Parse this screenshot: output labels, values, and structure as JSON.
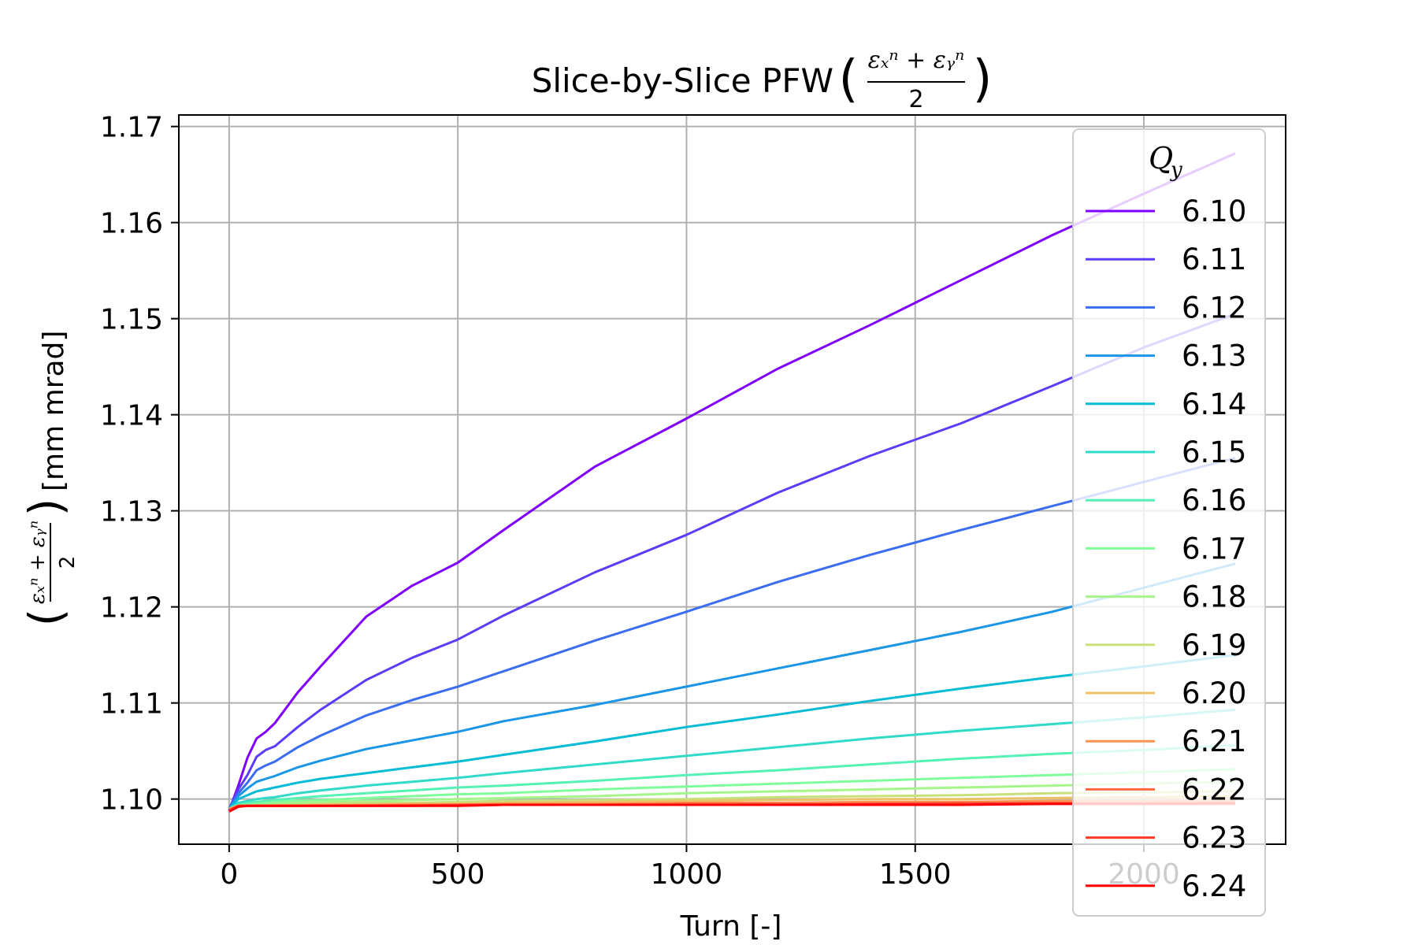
{
  "chart_data": {
    "type": "line",
    "title": "Slice-by-Slice PFW",
    "title_math": {
      "lparen": "(",
      "numerator": "εₓⁿ + εᵧⁿ",
      "denominator": "2",
      "rparen": ")"
    },
    "xlabel": "Turn [-]",
    "ylabel_math": {
      "lparen": "(",
      "numerator": "εₓⁿ + εᵧⁿ",
      "denominator": "2",
      "rparen": ")"
    },
    "ylabel": "[mm mrad]",
    "xlim": [
      -110,
      2310
    ],
    "ylim": [
      1.0953,
      1.1712
    ],
    "xticks": [
      0,
      500,
      1000,
      1500,
      2000
    ],
    "xtick_labels": [
      "0",
      "500",
      "1000",
      "1500",
      "2000"
    ],
    "yticks": [
      1.1,
      1.11,
      1.12,
      1.13,
      1.14,
      1.15,
      1.16,
      1.17
    ],
    "ytick_labels": [
      "1.10",
      "1.11",
      "1.12",
      "1.13",
      "1.14",
      "1.15",
      "1.16",
      "1.17"
    ],
    "grid": true,
    "legend": {
      "title": "Q",
      "title_sub": "y",
      "placement": "right"
    },
    "x": [
      0,
      20,
      40,
      60,
      80,
      100,
      150,
      200,
      300,
      400,
      500,
      600,
      800,
      1000,
      1200,
      1400,
      1600,
      1800,
      2000,
      2200
    ],
    "series": [
      {
        "name": "6.10",
        "color": "#8000ff",
        "values": [
          1.0988,
          1.1014,
          1.1043,
          1.1063,
          1.107,
          1.1079,
          1.1111,
          1.1138,
          1.119,
          1.1222,
          1.1246,
          1.128,
          1.1346,
          1.1396,
          1.1448,
          1.1493,
          1.154,
          1.1587,
          1.163,
          1.1672
        ]
      },
      {
        "name": "6.11",
        "color": "#5c3cfb",
        "values": [
          1.099,
          1.101,
          1.1025,
          1.1044,
          1.1051,
          1.1055,
          1.1075,
          1.1093,
          1.1124,
          1.1147,
          1.1166,
          1.1191,
          1.1236,
          1.1275,
          1.1319,
          1.1357,
          1.1391,
          1.143,
          1.147,
          1.1505
        ]
      },
      {
        "name": "6.12",
        "color": "#3a6cf4",
        "values": [
          1.099,
          1.1006,
          1.1017,
          1.103,
          1.1035,
          1.1039,
          1.1054,
          1.1066,
          1.1087,
          1.1103,
          1.1117,
          1.1133,
          1.1165,
          1.1195,
          1.1226,
          1.1254,
          1.128,
          1.1305,
          1.133,
          1.1355
        ]
      },
      {
        "name": "6.13",
        "color": "#1996e8",
        "values": [
          1.099,
          1.1003,
          1.1011,
          1.1018,
          1.1021,
          1.1024,
          1.1033,
          1.104,
          1.1052,
          1.1061,
          1.107,
          1.1081,
          1.1098,
          1.1117,
          1.1136,
          1.1155,
          1.1174,
          1.1195,
          1.122,
          1.1245
        ]
      },
      {
        "name": "6.14",
        "color": "#06bbd6",
        "values": [
          1.099,
          1.1,
          1.1004,
          1.1008,
          1.101,
          1.1012,
          1.1017,
          1.1021,
          1.1027,
          1.1033,
          1.1039,
          1.1046,
          1.106,
          1.1075,
          1.1088,
          1.1102,
          1.1115,
          1.1127,
          1.1138,
          1.115
        ]
      },
      {
        "name": "6.15",
        "color": "#31d9c8",
        "values": [
          1.099,
          1.0996,
          1.0998,
          1.1,
          1.1001,
          1.1002,
          1.1006,
          1.1009,
          1.1014,
          1.1018,
          1.1022,
          1.1027,
          1.1036,
          1.1045,
          1.1054,
          1.1063,
          1.1071,
          1.1078,
          1.1085,
          1.1093
        ]
      },
      {
        "name": "6.16",
        "color": "#56f1b4",
        "values": [
          1.099,
          1.0994,
          1.0996,
          1.0997,
          1.0998,
          1.0999,
          1.1001,
          1.1003,
          1.1006,
          1.1009,
          1.1012,
          1.1014,
          1.1019,
          1.1025,
          1.103,
          1.1036,
          1.1042,
          1.1047,
          1.1051,
          1.1056
        ]
      },
      {
        "name": "6.17",
        "color": "#7ffd9a",
        "values": [
          1.099,
          1.0993,
          1.0994,
          1.0995,
          1.0996,
          1.0997,
          1.0998,
          1.0999,
          1.1001,
          1.1003,
          1.1005,
          1.1006,
          1.101,
          1.1013,
          1.1016,
          1.1019,
          1.1022,
          1.1025,
          1.1028,
          1.1031
        ]
      },
      {
        "name": "6.18",
        "color": "#a4f68a",
        "values": [
          1.099,
          1.0993,
          1.0993,
          1.0994,
          1.0994,
          1.0995,
          1.0996,
          1.0997,
          1.0998,
          1.0999,
          1.1,
          1.1001,
          1.1003,
          1.1006,
          1.1008,
          1.101,
          1.1012,
          1.1014,
          1.1016,
          1.1018
        ]
      },
      {
        "name": "6.19",
        "color": "#c8e07a",
        "values": [
          1.099,
          1.0993,
          1.0993,
          1.0993,
          1.0993,
          1.0994,
          1.0994,
          1.0995,
          1.0996,
          1.0996,
          1.0997,
          1.0998,
          1.0999,
          1.1,
          1.1002,
          1.1003,
          1.1004,
          1.1006,
          1.1007,
          1.1008
        ]
      },
      {
        "name": "6.20",
        "color": "#ecc067",
        "values": [
          1.099,
          1.0993,
          1.0993,
          1.0993,
          1.0993,
          1.0993,
          1.0993,
          1.0994,
          1.0994,
          1.0995,
          1.0995,
          1.0996,
          1.0997,
          1.0998,
          1.0999,
          1.1,
          1.1,
          1.1001,
          1.1002,
          1.1003
        ]
      },
      {
        "name": "6.21",
        "color": "#ff9452",
        "values": [
          1.099,
          1.0993,
          1.0993,
          1.0993,
          1.0993,
          1.0993,
          1.0993,
          1.0993,
          1.0994,
          1.0994,
          1.0994,
          1.0995,
          1.0995,
          1.0996,
          1.0996,
          1.0997,
          1.0997,
          1.0998,
          1.0998,
          1.0999
        ]
      },
      {
        "name": "6.22",
        "color": "#ff6840",
        "values": [
          1.0988,
          1.0993,
          1.0993,
          1.0993,
          1.0993,
          1.0993,
          1.0993,
          1.0993,
          1.0993,
          1.0994,
          1.0994,
          1.0994,
          1.0994,
          1.0995,
          1.0995,
          1.0995,
          1.0996,
          1.0996,
          1.0996,
          1.0997
        ]
      },
      {
        "name": "6.23",
        "color": "#ff3c25",
        "values": [
          1.0988,
          1.0993,
          1.0993,
          1.0993,
          1.0993,
          1.0993,
          1.0993,
          1.0993,
          1.0993,
          1.0993,
          1.0994,
          1.0994,
          1.0994,
          1.0994,
          1.0994,
          1.0995,
          1.0995,
          1.0995,
          1.0995,
          1.0996
        ]
      },
      {
        "name": "6.24",
        "color": "#ff0000",
        "values": [
          1.0987,
          1.0992,
          1.0993,
          1.0993,
          1.0993,
          1.0993,
          1.0993,
          1.0993,
          1.0993,
          1.0993,
          1.0993,
          1.0994,
          1.0994,
          1.0994,
          1.0994,
          1.0994,
          1.0994,
          1.0995,
          1.0995,
          1.0995
        ]
      }
    ]
  }
}
